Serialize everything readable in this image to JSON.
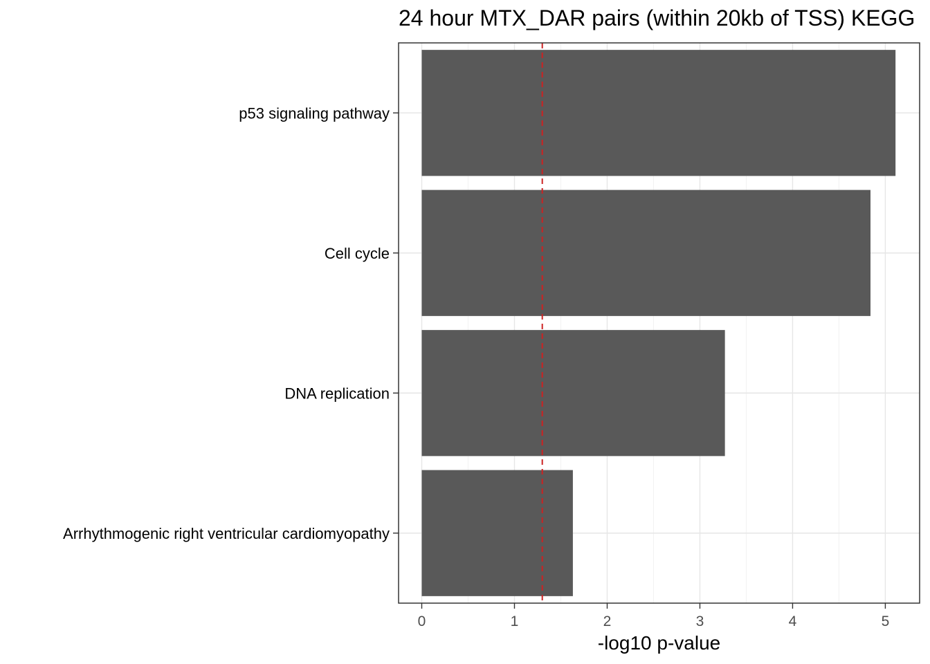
{
  "chart_data": {
    "type": "bar",
    "orientation": "horizontal",
    "title": "24 hour MTX_DAR pairs (within 20kb of TSS) KEGG",
    "xlabel": "-log10 p-value",
    "ylabel": "",
    "categories": [
      "p53 signaling pathway",
      "Cell cycle",
      "DNA replication",
      "Arrhythmogenic right ventricular cardiomyopathy"
    ],
    "values": [
      5.11,
      4.84,
      3.27,
      1.63
    ],
    "xlim": [
      -0.25,
      5.37
    ],
    "xticks": [
      "0",
      "1",
      "2",
      "3",
      "4",
      "5"
    ],
    "reference_line": {
      "x": 1.3,
      "style": "dashed",
      "color": "#cc2222"
    },
    "bar_color": "#595959",
    "grid": true,
    "legend": "none"
  }
}
